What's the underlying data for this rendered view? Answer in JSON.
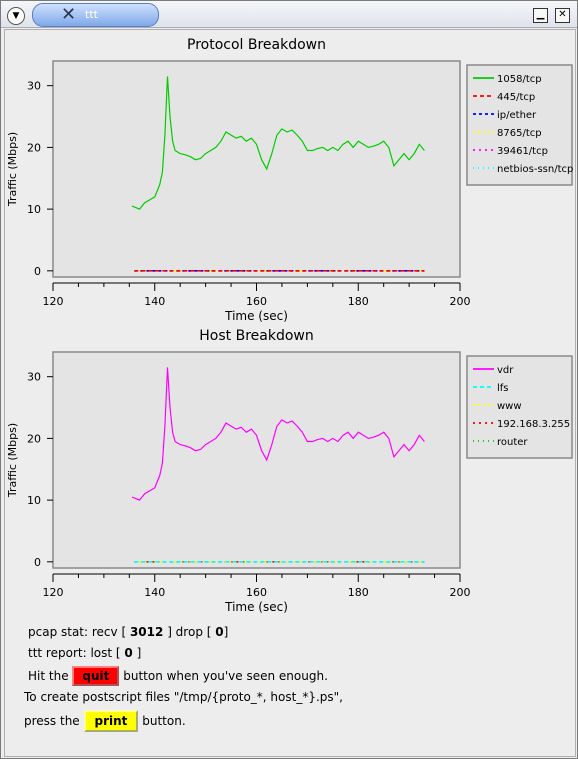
{
  "window": {
    "title": "ttt",
    "menu_icon": "chevron-down-icon",
    "minimize_icon": "minimize-icon",
    "close_icon": "close-icon",
    "app_icon": "x-icon"
  },
  "chart_data": [
    {
      "type": "line",
      "title": "Protocol Breakdown",
      "xlabel": "Time (sec)",
      "ylabel": "Traffic (Mbps)",
      "xlim": [
        120,
        200
      ],
      "ylim": [
        -1,
        34
      ],
      "xticks": [
        120,
        140,
        160,
        180,
        200
      ],
      "yticks": [
        0,
        10,
        20,
        30
      ],
      "legend_position": "right",
      "series": [
        {
          "name": "1058/tcp",
          "color": "#00cc00",
          "dash": "",
          "x": [
            135.5,
            137,
            138,
            139,
            140,
            141,
            141.5,
            142,
            142.5,
            143,
            143.5,
            144,
            145,
            146,
            147,
            148,
            149,
            150,
            151,
            152,
            153,
            154,
            155,
            156,
            157,
            158,
            159,
            160,
            161,
            162,
            163,
            164,
            165,
            166,
            167,
            168,
            169,
            170,
            171,
            172,
            173,
            174,
            175,
            176,
            177,
            178,
            179,
            180,
            181,
            182,
            183,
            184,
            185,
            186,
            187,
            188,
            189,
            190,
            191,
            192,
            193
          ],
          "y": [
            10.5,
            10,
            11,
            11.5,
            12,
            14,
            16,
            22,
            31.5,
            25,
            21,
            19.5,
            19,
            18.8,
            18.5,
            18,
            18.2,
            19,
            19.5,
            20,
            21,
            22.5,
            22,
            21.5,
            21.8,
            21,
            21.5,
            20.5,
            18,
            16.5,
            19,
            22,
            23,
            22.5,
            22.8,
            22,
            21,
            19.5,
            19.5,
            19.8,
            20,
            19.5,
            20,
            19.5,
            20.5,
            21,
            20,
            21,
            20.5,
            20,
            20.2,
            20.5,
            21,
            20,
            17,
            18,
            19,
            18,
            19,
            20.5,
            19.5
          ]
        },
        {
          "name": "445/tcp",
          "color": "#ff0000",
          "dash": "4,3",
          "x": [
            136,
            193
          ],
          "y": [
            0,
            0
          ]
        },
        {
          "name": "ip/ether",
          "color": "#0000ff",
          "dash": "3,3",
          "x": [
            136,
            193
          ],
          "y": [
            0,
            0
          ]
        },
        {
          "name": "8765/tcp",
          "color": "#ffff00",
          "dash": "2,3",
          "x": [
            136,
            193
          ],
          "y": [
            0,
            0
          ]
        },
        {
          "name": "39461/tcp",
          "color": "#ff00ff",
          "dash": "2,4",
          "x": [
            136,
            193
          ],
          "y": [
            0,
            0
          ]
        },
        {
          "name": "netbios-ssn/tcp",
          "color": "#00ffff",
          "dash": "1,4",
          "x": [
            136,
            193
          ],
          "y": [
            0,
            0
          ]
        }
      ]
    },
    {
      "type": "line",
      "title": "Host Breakdown",
      "xlabel": "Time (sec)",
      "ylabel": "Traffic (Mbps)",
      "xlim": [
        120,
        200
      ],
      "ylim": [
        -1,
        34
      ],
      "xticks": [
        120,
        140,
        160,
        180,
        200
      ],
      "yticks": [
        0,
        10,
        20,
        30
      ],
      "legend_position": "right",
      "series": [
        {
          "name": "vdr",
          "color": "#ff00ff",
          "dash": "",
          "x": [
            135.5,
            137,
            138,
            139,
            140,
            141,
            141.5,
            142,
            142.5,
            143,
            143.5,
            144,
            145,
            146,
            147,
            148,
            149,
            150,
            151,
            152,
            153,
            154,
            155,
            156,
            157,
            158,
            159,
            160,
            161,
            162,
            163,
            164,
            165,
            166,
            167,
            168,
            169,
            170,
            171,
            172,
            173,
            174,
            175,
            176,
            177,
            178,
            179,
            180,
            181,
            182,
            183,
            184,
            185,
            186,
            187,
            188,
            189,
            190,
            191,
            192,
            193
          ],
          "y": [
            10.5,
            10,
            11,
            11.5,
            12,
            14,
            16,
            22,
            31.5,
            25,
            21,
            19.5,
            19,
            18.8,
            18.5,
            18,
            18.2,
            19,
            19.5,
            20,
            21,
            22.5,
            22,
            21.5,
            21.8,
            21,
            21.5,
            20.5,
            18,
            16.5,
            19,
            22,
            23,
            22.5,
            22.8,
            22,
            21,
            19.5,
            19.5,
            19.8,
            20,
            19.5,
            20,
            19.5,
            20.5,
            21,
            20,
            21,
            20.5,
            20,
            20.2,
            20.5,
            21,
            20,
            17,
            18,
            19,
            18,
            19,
            20.5,
            19.5
          ]
        },
        {
          "name": "lfs",
          "color": "#00ffff",
          "dash": "4,3",
          "x": [
            136,
            193
          ],
          "y": [
            0,
            0
          ]
        },
        {
          "name": "www",
          "color": "#ffff00",
          "dash": "2,3",
          "x": [
            136,
            193
          ],
          "y": [
            0,
            0
          ]
        },
        {
          "name": "192.168.3.255",
          "color": "#ff0000",
          "dash": "2,4",
          "x": [
            136,
            193
          ],
          "y": [
            0,
            0
          ]
        },
        {
          "name": "router",
          "color": "#00cc00",
          "dash": "1,4",
          "x": [
            136,
            193
          ],
          "y": [
            0,
            0
          ]
        }
      ]
    }
  ],
  "status": {
    "pcap_prefix": "pcap stat: recv [",
    "recv": "3012",
    "drop_label": "]  drop [",
    "drop": "0",
    "pcap_suffix": "]",
    "report_prefix": "ttt report: lost [",
    "lost": "0",
    "report_suffix": "]"
  },
  "help": {
    "hit_the": "Hit the",
    "quit_label": "quit",
    "quit_suffix": "button when you've seen enough.",
    "create_line": "To create postscript files \"/tmp/{proto_*, host_*}.ps\",",
    "press_the": "press the",
    "print_label": "print",
    "print_suffix": "button."
  }
}
